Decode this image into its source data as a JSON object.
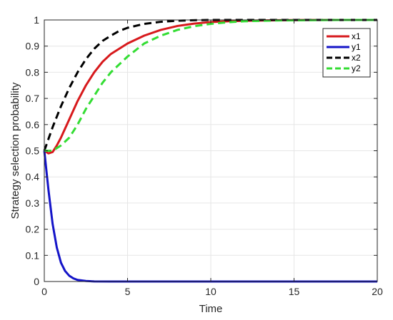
{
  "chart_data": {
    "type": "line",
    "title": "",
    "xlabel": "Time",
    "ylabel": "Strategy selection probability",
    "xlim": [
      0,
      20
    ],
    "ylim": [
      0,
      1
    ],
    "xticks": [
      0,
      5,
      10,
      15,
      20
    ],
    "yticks": [
      0,
      0.1,
      0.2,
      0.3,
      0.4,
      0.5,
      0.6,
      0.7,
      0.8,
      0.9,
      1
    ],
    "grid": true,
    "legend_position": "top-right",
    "series": [
      {
        "name": "x1",
        "color": "#d7191c",
        "dash": "solid",
        "x": [
          0,
          0.25,
          0.5,
          0.75,
          1,
          1.5,
          2,
          2.5,
          3,
          3.5,
          4,
          5,
          6,
          7,
          8,
          9,
          10,
          11,
          12,
          14,
          16,
          18,
          20
        ],
        "y": [
          0.5,
          0.49,
          0.495,
          0.52,
          0.55,
          0.62,
          0.69,
          0.75,
          0.8,
          0.84,
          0.87,
          0.91,
          0.94,
          0.962,
          0.977,
          0.986,
          0.992,
          0.995,
          0.997,
          0.999,
          1,
          1,
          1
        ]
      },
      {
        "name": "y1",
        "color": "#1414c8",
        "dash": "solid",
        "x": [
          0,
          0.25,
          0.5,
          0.75,
          1,
          1.25,
          1.5,
          1.75,
          2,
          2.5,
          3,
          4,
          5,
          10,
          15,
          20
        ],
        "y": [
          0.5,
          0.35,
          0.22,
          0.13,
          0.072,
          0.04,
          0.022,
          0.012,
          0.006,
          0.002,
          0.0005,
          0,
          0,
          0,
          0,
          0
        ]
      },
      {
        "name": "x2",
        "color": "#000000",
        "dash": "dashed",
        "x": [
          0,
          0.5,
          1,
          1.5,
          2,
          2.5,
          3,
          3.5,
          4,
          4.5,
          5,
          6,
          7,
          8,
          9,
          10,
          12,
          15,
          20
        ],
        "y": [
          0.5,
          0.59,
          0.67,
          0.74,
          0.8,
          0.85,
          0.89,
          0.92,
          0.94,
          0.958,
          0.97,
          0.985,
          0.993,
          0.997,
          0.999,
          1,
          1,
          1,
          1
        ]
      },
      {
        "name": "y2",
        "color": "#33dd33",
        "dash": "dashed",
        "x": [
          0,
          0.5,
          1,
          1.5,
          2,
          2.5,
          3,
          3.5,
          4,
          5,
          6,
          7,
          8,
          9,
          10,
          11,
          12,
          14,
          16,
          18,
          20
        ],
        "y": [
          0.5,
          0.5,
          0.52,
          0.55,
          0.6,
          0.66,
          0.71,
          0.76,
          0.8,
          0.86,
          0.91,
          0.94,
          0.962,
          0.976,
          0.985,
          0.991,
          0.995,
          0.998,
          0.999,
          1,
          1
        ]
      }
    ]
  }
}
